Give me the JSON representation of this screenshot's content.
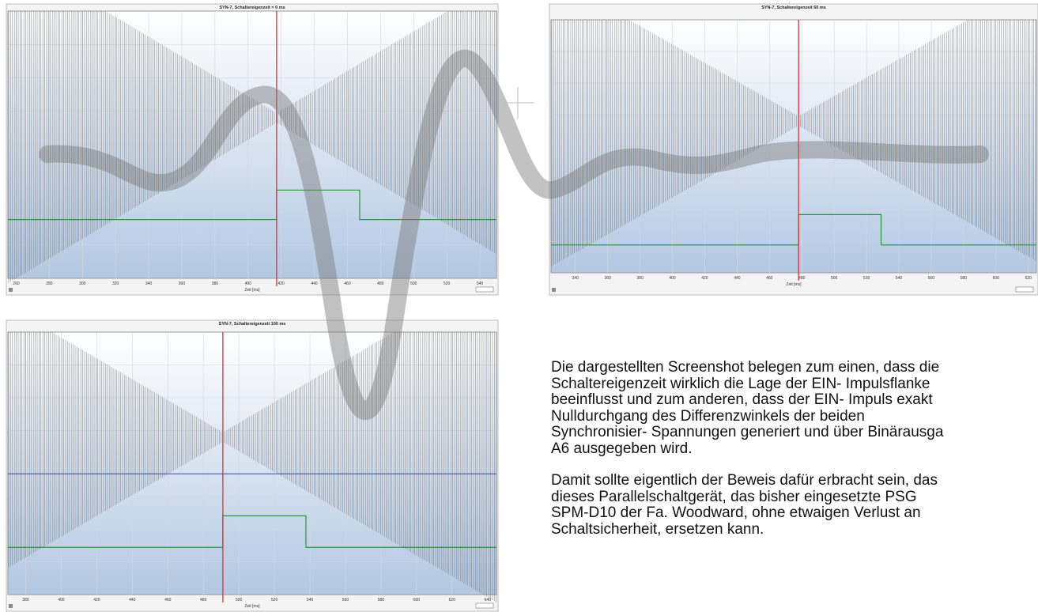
{
  "panels": [
    {
      "title": "SYN-7, Schaltereigenzeit = 0 ms",
      "x_label": "Zeit [ms]",
      "xlim": [
        255,
        550
      ],
      "xticks": [
        260,
        280,
        300,
        320,
        340,
        360,
        380,
        400,
        420,
        440,
        460,
        480,
        500,
        520,
        540
      ]
    },
    {
      "title": "SYN-7, Schaltereigenzeit 60 ms",
      "x_label": "Zeit [ms]",
      "xlim": [
        325,
        625
      ],
      "xticks": [
        340,
        360,
        380,
        400,
        420,
        440,
        460,
        480,
        500,
        520,
        540,
        560,
        580,
        600,
        620
      ]
    },
    {
      "title": "SYN-7, Schaltereigenzeit 100 ms",
      "x_label": "Zeit [ms]",
      "xlim": [
        370,
        645
      ],
      "xticks": [
        380,
        400,
        420,
        440,
        460,
        480,
        500,
        520,
        540,
        560,
        580,
        600,
        620,
        640
      ]
    }
  ],
  "paragraphs": [
    [
      "Die dargestellten Screenshot belegen zum einen, dass die",
      "Schaltereigenzeit wirklich die Lage der EIN- Impulsflanke",
      "beeinflusst und zum anderen, dass der EIN- Impuls exakt",
      "Nulldurchgang des Differenzwinkels der beiden",
      "Synchronisier- Spannungen generiert und über Binärausga",
      "A6 ausgegeben wird."
    ],
    [
      "Damit sollte eigentlich der Beweis dafür erbracht sein, das",
      "dieses Parallelschaltgerät, das bisher eingesetzte PSG",
      "SPM-D10 der Fa. Woodward, ohne etwaigen Verlust an",
      "Schaltsicherheit, ersetzen kann."
    ]
  ]
}
